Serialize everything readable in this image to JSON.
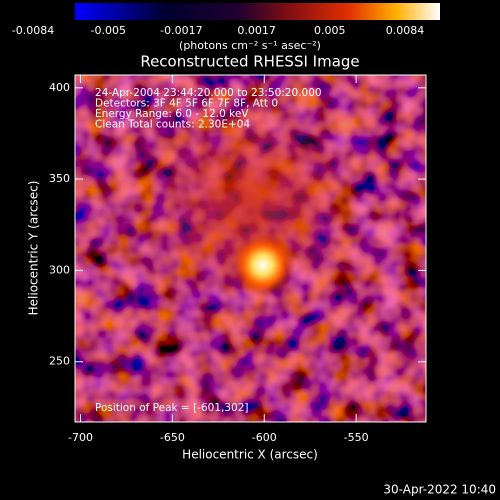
{
  "chart_data": {
    "type": "image",
    "title": "Reconstructed RHESSI Image",
    "x_label": "Heliocentric X (arcsec)",
    "y_label": "Heliocentric Y (arcsec)",
    "xlim": [
      -703,
      -512
    ],
    "ylim": [
      217,
      407
    ],
    "xticks": [
      -700,
      -650,
      -600,
      -550
    ],
    "yticks": [
      250,
      300,
      350,
      400
    ],
    "colorbar": {
      "lim": [
        -0.0084,
        0.0084
      ],
      "ticks": [
        -0.0084,
        -0.005,
        -0.0017,
        0.0017,
        0.005,
        0.0084
      ],
      "label": "(photons cm⁻² s⁻¹ asec⁻²)"
    },
    "annotations": [
      "24-Apr-2004 23:44:20.000 to 23:50:20.000",
      "Detectors: 3F 4F 5F 6F 7F 8F, Att 0",
      "Energy Range: 6.0 - 12.0 keV",
      "Clean     Total counts: 2.30E+04"
    ],
    "peak_text": "Position of Peak = [-601,302]",
    "timestamp": "30-Apr-2022 10:40"
  }
}
